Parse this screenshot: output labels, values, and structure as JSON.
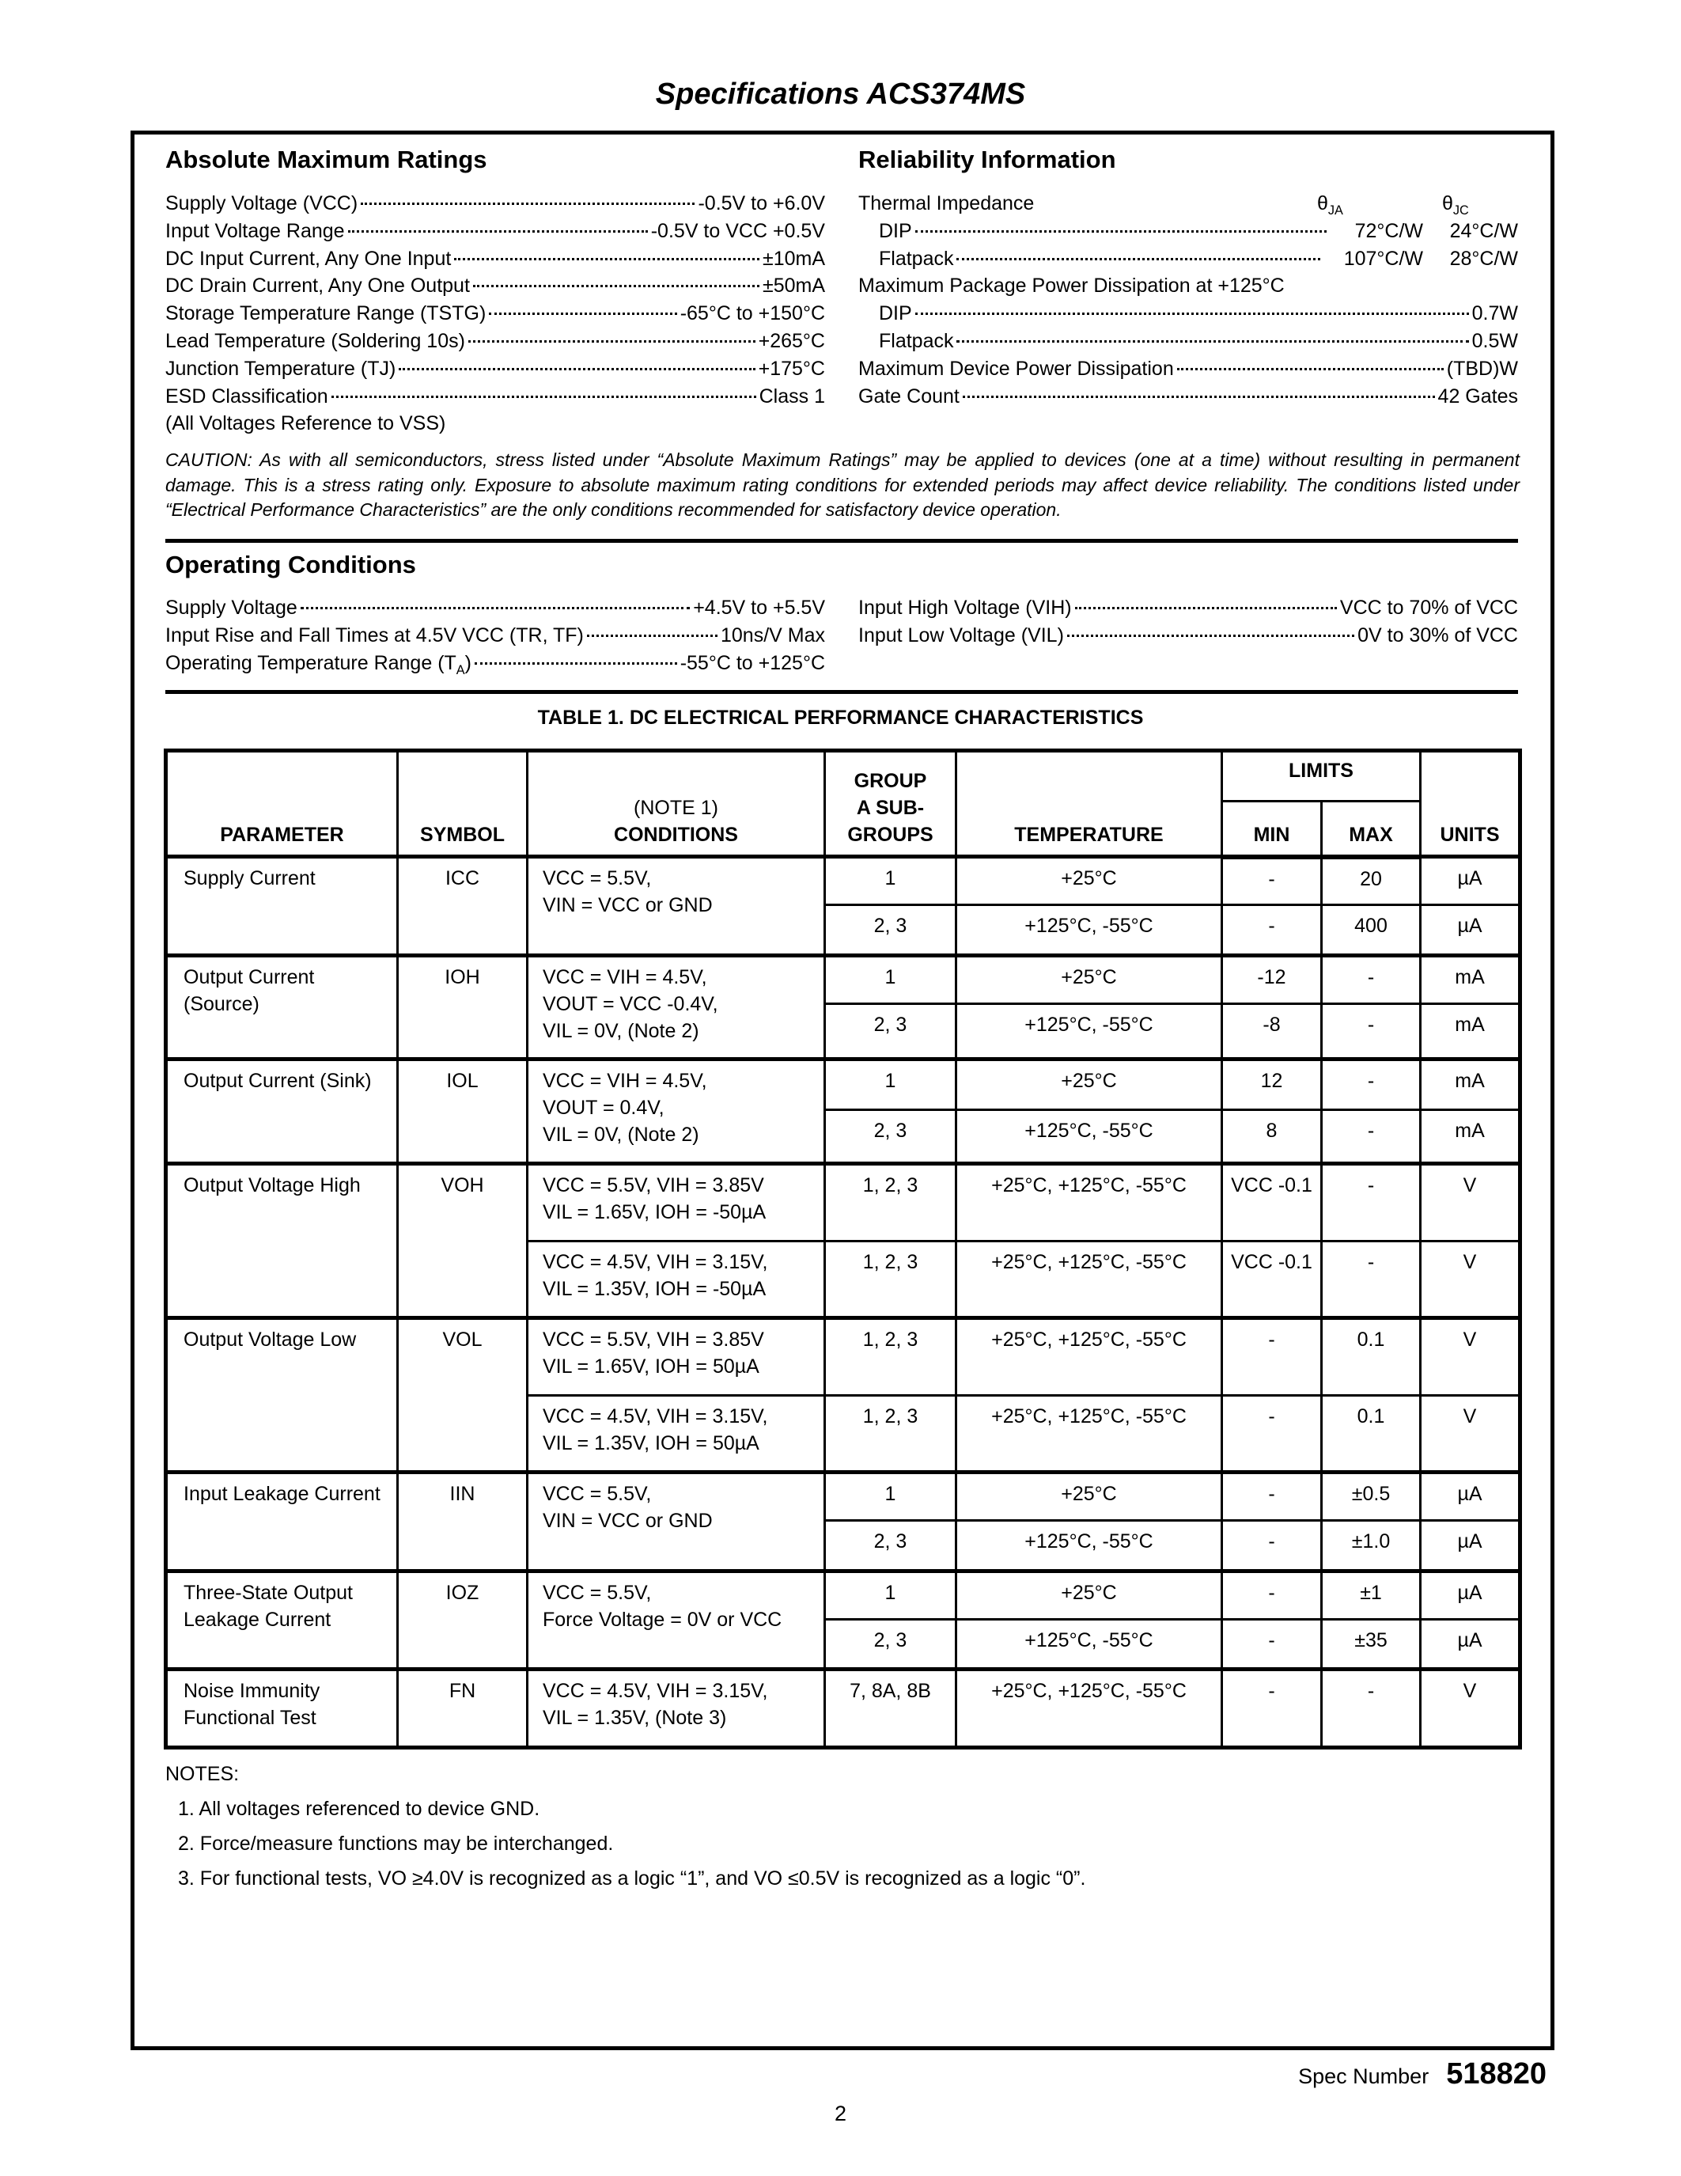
{
  "title": "Specifications ACS374MS",
  "abs_max": {
    "heading": "Absolute Maximum Ratings",
    "rows": [
      {
        "label": "Supply Voltage (VCC)",
        "value": "-0.5V to +6.0V"
      },
      {
        "label": "Input Voltage Range",
        "value": "-0.5V to VCC +0.5V"
      },
      {
        "label": "DC Input Current, Any One Input",
        "value": "±10mA"
      },
      {
        "label": "DC Drain Current, Any One Output",
        "value": "±50mA"
      },
      {
        "label": "Storage Temperature Range (TSTG)",
        "value": "-65°C to +150°C"
      },
      {
        "label": "Lead Temperature (Soldering 10s)",
        "value": "+265°C"
      },
      {
        "label": "Junction Temperature (TJ)",
        "value": "+175°C"
      },
      {
        "label": "ESD Classification",
        "value": "Class 1"
      }
    ],
    "footnote": "(All Voltages Reference to VSS)"
  },
  "reliability": {
    "heading": "Reliability Information",
    "thermal_label": "Thermal Impedance",
    "theta": "θ",
    "ja": "JA",
    "jc": "JC",
    "thermal_rows": [
      {
        "label": "DIP",
        "ja": "72°C/W",
        "jc": "24°C/W"
      },
      {
        "label": "Flatpack",
        "ja": "107°C/W",
        "jc": "28°C/W"
      }
    ],
    "pkg_power_label": "Maximum Package Power Dissipation at +125°C",
    "pkg_rows": [
      {
        "label": "DIP",
        "value": "0.7W"
      },
      {
        "label": "Flatpack",
        "value": "0.5W"
      }
    ],
    "device_power": {
      "label": "Maximum Device Power Dissipation",
      "value": "(TBD)W"
    },
    "gate_count": {
      "label": "Gate Count",
      "value": "42 Gates"
    }
  },
  "caution": "CAUTION: As with all semiconductors, stress listed under “Absolute Maximum Ratings” may be applied to devices (one at a time) without resulting in permanent damage. This is a stress rating only. Exposure to absolute maximum rating conditions for extended periods may affect device reliability. The conditions listed under “Electrical Performance Characteristics” are the only conditions recommended for satisfactory device operation.",
  "operating": {
    "heading": "Operating Conditions",
    "left": [
      {
        "label": "Supply Voltage",
        "value": "+4.5V to +5.5V"
      },
      {
        "label": "Input Rise and Fall Times at 4.5V VCC (TR, TF)",
        "value": "10ns/V Max"
      },
      {
        "label": "Operating Temperature Range (T",
        "label_sub": "A",
        "label_end": ")",
        "value": "-55°C to +125°C"
      }
    ],
    "right": [
      {
        "label": "Input High Voltage (VIH)",
        "value": "VCC to 70% of VCC"
      },
      {
        "label": "Input Low Voltage (VIL)",
        "value": "0V to 30% of VCC"
      }
    ]
  },
  "table": {
    "title": "TABLE 1.  DC ELECTRICAL PERFORMANCE CHARACTERISTICS",
    "headers": {
      "parameter": "PARAMETER",
      "symbol": "SYMBOL",
      "conditions_note": "(NOTE 1)",
      "conditions": "CONDITIONS",
      "group_1": "GROUP",
      "group_2": "A SUB-",
      "group_3": "GROUPS",
      "temperature": "TEMPERATURE",
      "limits": "LIMITS",
      "min": "MIN",
      "max": "MAX",
      "units": "UNITS"
    },
    "rows": {
      "icc": {
        "parameter": "Supply Current",
        "symbol": "ICC",
        "conditions": "VCC = 5.5V,\nVIN = VCC or GND",
        "sub": [
          {
            "group": "1",
            "temp": "+25°C",
            "min": "-",
            "max": "20",
            "units": "µA"
          },
          {
            "group": "2, 3",
            "temp": "+125°C, -55°C",
            "min": "-",
            "max": "400",
            "units": "µA"
          }
        ]
      },
      "ioh": {
        "parameter": "Output Current (Source)",
        "symbol": "IOH",
        "conditions": "VCC = VIH = 4.5V,\nVOUT = VCC -0.4V,\nVIL = 0V, (Note 2)",
        "sub": [
          {
            "group": "1",
            "temp": "+25°C",
            "min": "-12",
            "max": "-",
            "units": "mA"
          },
          {
            "group": "2, 3",
            "temp": "+125°C, -55°C",
            "min": "-8",
            "max": "-",
            "units": "mA"
          }
        ]
      },
      "iol": {
        "parameter": "Output Current (Sink)",
        "symbol": "IOL",
        "conditions": "VCC = VIH = 4.5V,\nVOUT = 0.4V,\nVIL = 0V, (Note 2)",
        "sub": [
          {
            "group": "1",
            "temp": "+25°C",
            "min": "12",
            "max": "-",
            "units": "mA"
          },
          {
            "group": "2, 3",
            "temp": "+125°C, -55°C",
            "min": "8",
            "max": "-",
            "units": "mA"
          }
        ]
      },
      "voh": {
        "parameter": "Output Voltage High",
        "symbol": "VOH",
        "sub": [
          {
            "conditions": "VCC = 5.5V, VIH = 3.85V\nVIL = 1.65V, IOH = -50µA",
            "group": "1, 2, 3",
            "temp": "+25°C, +125°C, -55°C",
            "min": "VCC -0.1",
            "max": "-",
            "units": "V"
          },
          {
            "conditions": "VCC = 4.5V, VIH = 3.15V,\nVIL = 1.35V, IOH = -50µA",
            "group": "1, 2, 3",
            "temp": "+25°C, +125°C, -55°C",
            "min": "VCC -0.1",
            "max": "-",
            "units": "V"
          }
        ]
      },
      "vol": {
        "parameter": "Output Voltage Low",
        "symbol": "VOL",
        "sub": [
          {
            "conditions": "VCC = 5.5V, VIH = 3.85V\nVIL = 1.65V, IOH = 50µA",
            "group": "1, 2, 3",
            "temp": "+25°C, +125°C, -55°C",
            "min": "-",
            "max": "0.1",
            "units": "V"
          },
          {
            "conditions": "VCC = 4.5V, VIH = 3.15V,\nVIL = 1.35V, IOH = 50µA",
            "group": "1, 2, 3",
            "temp": "+25°C, +125°C, -55°C",
            "min": "-",
            "max": "0.1",
            "units": "V"
          }
        ]
      },
      "iin": {
        "parameter": "Input Leakage Current",
        "symbol": "IIN",
        "conditions": "VCC = 5.5V,\nVIN = VCC or GND",
        "sub": [
          {
            "group": "1",
            "temp": "+25°C",
            "min": "-",
            "max": "±0.5",
            "units": "µA"
          },
          {
            "group": "2, 3",
            "temp": "+125°C, -55°C",
            "min": "-",
            "max": "±1.0",
            "units": "µA"
          }
        ]
      },
      "ioz": {
        "parameter": "Three-State Output Leakage Current",
        "symbol": "IOZ",
        "conditions": "VCC = 5.5V,\nForce Voltage = 0V or VCC",
        "sub": [
          {
            "group": "1",
            "temp": "+25°C",
            "min": "-",
            "max": "±1",
            "units": "µA"
          },
          {
            "group": "2, 3",
            "temp": "+125°C, -55°C",
            "min": "-",
            "max": "±35",
            "units": "µA"
          }
        ]
      },
      "fn": {
        "parameter": "Noise Immunity Functional Test",
        "symbol": "FN",
        "conditions": "VCC = 4.5V, VIH = 3.15V,\nVIL = 1.35V, (Note 3)",
        "sub": [
          {
            "group": "7, 8A, 8B",
            "temp": "+25°C, +125°C, -55°C",
            "min": "-",
            "max": "-",
            "units": "V"
          }
        ]
      }
    }
  },
  "notes": {
    "heading": "NOTES:",
    "items": [
      "1.  All voltages referenced to device GND.",
      "2.  Force/measure functions may be interchanged.",
      "3.  For functional tests, VO ≥4.0V is recognized as a logic “1”, and VO ≤0.5V is recognized as a logic “0”."
    ]
  },
  "footer": {
    "spec_label": "Spec Number",
    "spec_number": "518820",
    "page_number": "2"
  }
}
